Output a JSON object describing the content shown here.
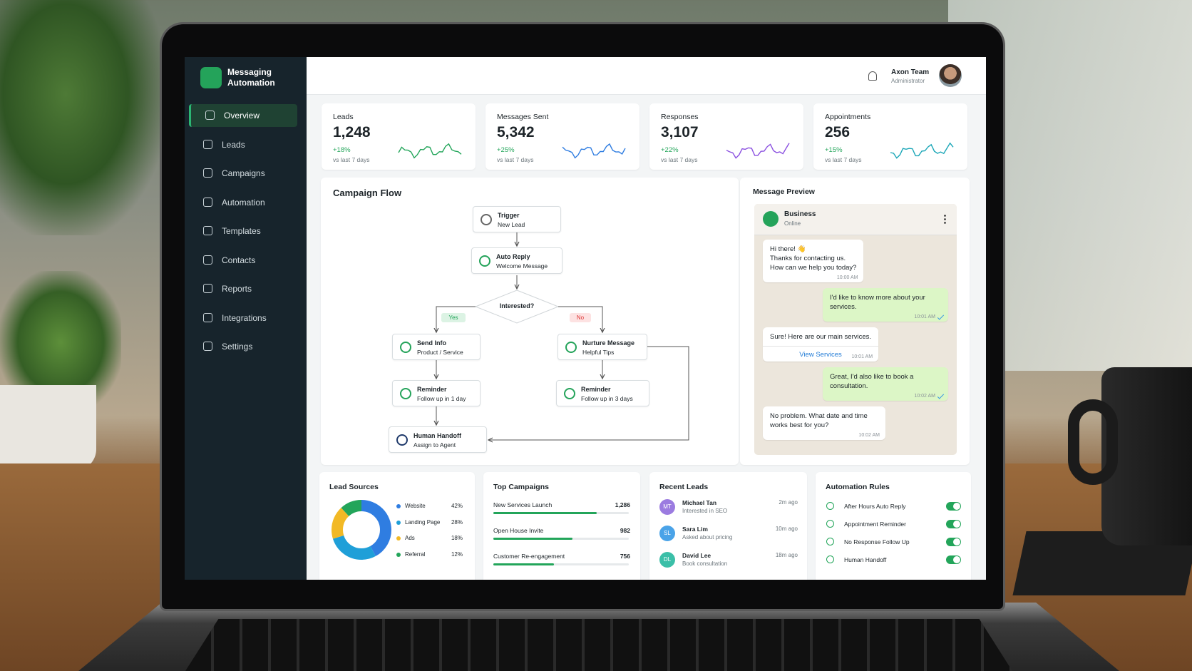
{
  "brand": "Messaging Automation",
  "nav": [
    "Overview",
    "Leads",
    "Campaigns",
    "Automation",
    "Templates",
    "Contacts",
    "Reports",
    "Integrations",
    "Settings"
  ],
  "active_nav": 0,
  "user": {
    "name": "Axon Team",
    "role": "Administrator"
  },
  "stats": [
    {
      "label": "Leads",
      "value": "1,248",
      "change": "+18%",
      "period": "vs last 7 days"
    },
    {
      "label": "Messages Sent",
      "value": "5,342",
      "change": "+25%",
      "period": "vs last 7 days"
    },
    {
      "label": "Responses",
      "value": "3,107",
      "change": "+22%",
      "period": "vs last 7 days"
    },
    {
      "label": "Appointments",
      "value": "256",
      "change": "+15%",
      "period": "vs last 7 days"
    }
  ],
  "campaign_flow": {
    "title": "Campaign Flow",
    "nodes": [
      {
        "title": "Trigger",
        "subtitle": "New Lead"
      },
      {
        "title": "Auto Reply",
        "subtitle": "Welcome Message"
      },
      {
        "title": "Send Info",
        "subtitle": "Product / Service"
      },
      {
        "title": "Nurture Message",
        "subtitle": "Helpful Tips"
      },
      {
        "title": "Reminder",
        "subtitle": "Follow up in 1 day"
      },
      {
        "title": "Reminder",
        "subtitle": "Follow up in 3 days"
      },
      {
        "title": "Human Handoff",
        "subtitle": "Assign to Agent"
      }
    ],
    "decision": "Interested?",
    "yes": "Yes",
    "no": "No"
  },
  "message_preview": {
    "title": "Message Preview",
    "contact": "Business",
    "status": "Online",
    "messages": [
      {
        "side": "in",
        "text": "Hi there! 👋\nThanks for contacting us.\nHow can we help you today?",
        "time": "10:00 AM"
      },
      {
        "side": "out",
        "text": "I'd like to know more about your services.",
        "time": "10:01 AM"
      },
      {
        "side": "in",
        "text": "Sure! Here are our main services.",
        "time": "10:01 AM",
        "link": "View Services"
      },
      {
        "side": "out",
        "text": "Great, I'd also like to book a consultation.",
        "time": "10:02 AM"
      },
      {
        "side": "in",
        "text": "No problem. What date and time works best for you?",
        "time": "10:02 AM"
      }
    ]
  },
  "lead_sources": {
    "title": "Lead Sources",
    "type": "pie",
    "categories": [
      "Website",
      "Landing Page",
      "Ads",
      "Referral"
    ],
    "values": [
      42,
      28,
      18,
      12
    ],
    "value_labels": [
      "42%",
      "28%",
      "18%",
      "12%"
    ],
    "colors": [
      "#2f7de1",
      "#1f9fd8",
      "#f2b925",
      "#23a55a"
    ]
  },
  "top_campaigns": {
    "title": "Top Campaigns",
    "items": [
      {
        "name": "New Services Launch",
        "value": 1286,
        "label": "1,286"
      },
      {
        "name": "Open House Invite",
        "value": 982,
        "label": "982"
      },
      {
        "name": "Customer Re-engagement",
        "value": 756,
        "label": "756"
      }
    ]
  },
  "recent_leads": {
    "title": "Recent Leads",
    "items": [
      {
        "initials": "MT",
        "name": "Michael Tan",
        "note": "Interested in SEO",
        "time": "2m ago"
      },
      {
        "initials": "SL",
        "name": "Sara Lim",
        "note": "Asked about pricing",
        "time": "10m ago"
      },
      {
        "initials": "DL",
        "name": "David Lee",
        "note": "Book consultation",
        "time": "18m ago"
      }
    ]
  },
  "automation_rules": {
    "title": "Automation Rules",
    "items": [
      {
        "name": "After Hours Auto Reply",
        "enabled": true
      },
      {
        "name": "Appointment Reminder",
        "enabled": true
      },
      {
        "name": "No Response Follow Up",
        "enabled": true
      },
      {
        "name": "Human Handoff",
        "enabled": true
      }
    ]
  }
}
